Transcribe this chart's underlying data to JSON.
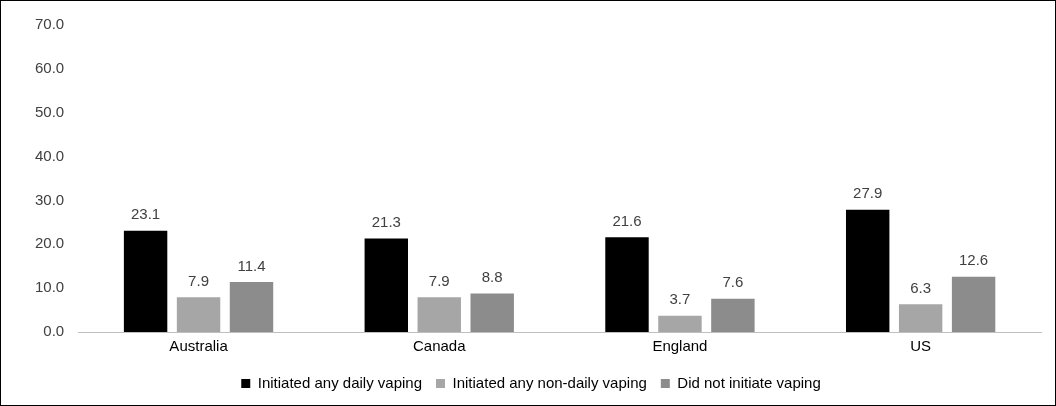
{
  "chart_data": {
    "type": "bar",
    "categories": [
      "Australia",
      "Canada",
      "England",
      "US"
    ],
    "series": [
      {
        "name": "Initiated any daily vaping",
        "color": "#000000",
        "values": [
          23.1,
          21.3,
          21.6,
          27.9
        ]
      },
      {
        "name": "Initiated any non-daily vaping",
        "color": "#a6a6a6",
        "values": [
          7.9,
          7.9,
          3.7,
          6.3
        ]
      },
      {
        "name": "Did not initiate vaping",
        "color": "#8c8c8c",
        "values": [
          11.4,
          8.8,
          7.6,
          12.6
        ]
      }
    ],
    "ylim": [
      0,
      70
    ],
    "yticks": [
      {
        "value": 0,
        "label": "0.0"
      },
      {
        "value": 10,
        "label": "10.0"
      },
      {
        "value": 20,
        "label": "20.0"
      },
      {
        "value": 30,
        "label": "30.0"
      },
      {
        "value": 40,
        "label": "40.0"
      },
      {
        "value": 50,
        "label": "50.0"
      },
      {
        "value": 60,
        "label": "60.0"
      },
      {
        "value": 70,
        "label": "70.0"
      }
    ],
    "data_labels": true,
    "grid": false,
    "legend": "bottom"
  }
}
